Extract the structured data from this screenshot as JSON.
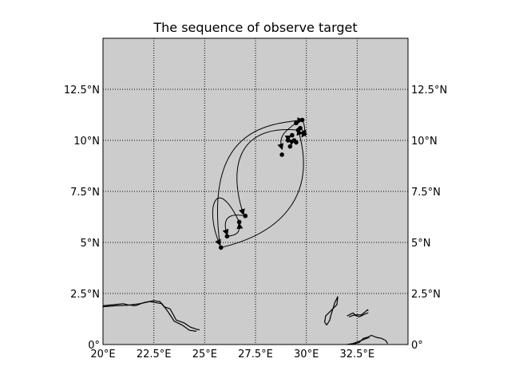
{
  "chart_data": {
    "type": "map",
    "title": "The sequence of observe target",
    "projection": "cylindrical",
    "xlim": [
      20,
      35
    ],
    "ylim": [
      0,
      15
    ],
    "grid": true,
    "grid_style": "dotted",
    "background_color": "#cccccc",
    "coastline_color": "#000000",
    "x_ticks": [
      {
        "value": 20,
        "label": "20°E"
      },
      {
        "value": 22.5,
        "label": "22.5°E"
      },
      {
        "value": 25,
        "label": "25°E"
      },
      {
        "value": 27.5,
        "label": "27.5°E"
      },
      {
        "value": 30,
        "label": "30°E"
      },
      {
        "value": 32.5,
        "label": "32.5°E"
      }
    ],
    "y_ticks": [
      {
        "value": 0,
        "label": "0°"
      },
      {
        "value": 2.5,
        "label": "2.5°N"
      },
      {
        "value": 5,
        "label": "5°N"
      },
      {
        "value": 7.5,
        "label": "7.5°N"
      },
      {
        "value": 10,
        "label": "10°N"
      },
      {
        "value": 12.5,
        "label": "12.5°N"
      }
    ],
    "points": [
      {
        "lon": 25.8,
        "lat": 4.75
      },
      {
        "lon": 26.1,
        "lat": 5.3
      },
      {
        "lon": 26.7,
        "lat": 6.0
      },
      {
        "lon": 27.0,
        "lat": 6.3
      },
      {
        "lon": 28.8,
        "lat": 9.3
      },
      {
        "lon": 29.1,
        "lat": 10.0
      },
      {
        "lon": 29.2,
        "lat": 9.7
      },
      {
        "lon": 29.3,
        "lat": 10.25
      },
      {
        "lon": 29.4,
        "lat": 10.0
      },
      {
        "lon": 29.5,
        "lat": 9.9
      },
      {
        "lon": 29.6,
        "lat": 10.5
      },
      {
        "lon": 29.7,
        "lat": 10.6
      },
      {
        "lon": 29.5,
        "lat": 10.85
      },
      {
        "lon": 29.8,
        "lat": 11.0
      }
    ],
    "routes": [
      {
        "from": [
          25.8,
          4.75
        ],
        "to": [
          29.6,
          10.5
        ],
        "ctrl1": [
          29.0,
          5.5
        ],
        "ctrl2": [
          30.5,
          7.5
        ]
      },
      {
        "from": [
          29.6,
          10.5
        ],
        "to": [
          26.9,
          6.4
        ],
        "ctrl1": [
          26.5,
          10.8
        ],
        "ctrl2": [
          26.2,
          8.5
        ]
      },
      {
        "from": [
          27.0,
          6.3
        ],
        "to": [
          26.1,
          5.4
        ],
        "ctrl1": [
          26.0,
          6.5
        ],
        "ctrl2": [
          25.9,
          6.0
        ]
      },
      {
        "from": [
          26.1,
          5.3
        ],
        "to": [
          26.7,
          5.9
        ],
        "ctrl1": [
          26.6,
          5.35
        ],
        "ctrl2": [
          26.75,
          5.5
        ]
      },
      {
        "from": [
          26.7,
          6.0
        ],
        "to": [
          25.75,
          4.9
        ],
        "ctrl1": [
          25.5,
          8.5
        ],
        "ctrl2": [
          25.0,
          6.5
        ]
      },
      {
        "from": [
          25.75,
          4.9
        ],
        "to": [
          29.8,
          11.0
        ],
        "ctrl1": [
          25.0,
          10.5
        ],
        "ctrl2": [
          28.0,
          10.8
        ]
      },
      {
        "from": [
          29.8,
          11.0
        ],
        "to": [
          29.8,
          10.2
        ],
        "ctrl1": [
          29.9,
          10.8
        ],
        "ctrl2": [
          30.0,
          10.5
        ]
      },
      {
        "from": [
          29.5,
          10.85
        ],
        "to": [
          28.8,
          9.6
        ],
        "ctrl1": [
          29.0,
          10.5
        ],
        "ctrl2": [
          28.6,
          10.2
        ]
      },
      {
        "from": [
          29.3,
          10.25
        ],
        "to": [
          29.1,
          10.0
        ],
        "ctrl1": [
          29.25,
          10.2
        ],
        "ctrl2": [
          29.1,
          10.15
        ]
      },
      {
        "from": [
          29.2,
          9.7
        ],
        "to": [
          29.4,
          10.0
        ],
        "ctrl1": [
          29.25,
          9.8
        ],
        "ctrl2": [
          29.3,
          9.95
        ]
      },
      {
        "from": [
          29.7,
          10.6
        ],
        "to": [
          29.95,
          10.25
        ],
        "ctrl1": [
          29.85,
          10.5
        ],
        "ctrl2": [
          29.9,
          10.35
        ]
      }
    ],
    "coastlines": [
      [
        [
          20,
          1.9
        ],
        [
          20.5,
          1.95
        ],
        [
          21,
          2.0
        ],
        [
          21.2,
          1.95
        ],
        [
          21.6,
          1.9
        ],
        [
          22.0,
          2.05
        ],
        [
          22.5,
          2.15
        ],
        [
          22.8,
          2.1
        ],
        [
          23.0,
          1.85
        ],
        [
          23.3,
          1.75
        ],
        [
          23.6,
          1.2
        ],
        [
          24.0,
          1.05
        ],
        [
          24.3,
          0.85
        ],
        [
          24.6,
          0.75
        ],
        [
          24.75,
          0.72
        ]
      ],
      [
        [
          20,
          1.85
        ],
        [
          20.6,
          1.9
        ],
        [
          21.2,
          1.92
        ],
        [
          21.8,
          2.0
        ],
        [
          22.3,
          2.1
        ],
        [
          22.9,
          2.0
        ],
        [
          23.2,
          1.6
        ],
        [
          23.5,
          1.15
        ],
        [
          23.9,
          0.95
        ],
        [
          24.25,
          0.7
        ],
        [
          24.6,
          0.65
        ]
      ],
      [
        [
          31.0,
          0.95
        ],
        [
          30.9,
          1.1
        ],
        [
          30.95,
          1.4
        ],
        [
          31.3,
          1.75
        ],
        [
          31.5,
          1.95
        ],
        [
          31.55,
          2.35
        ],
        [
          31.4,
          2.05
        ],
        [
          31.2,
          1.4
        ],
        [
          31.15,
          1.2
        ],
        [
          31.0,
          0.95
        ]
      ],
      [
        [
          32.0,
          1.4
        ],
        [
          32.3,
          1.55
        ],
        [
          32.4,
          1.45
        ],
        [
          32.7,
          1.45
        ],
        [
          32.9,
          1.6
        ],
        [
          33.0,
          1.7
        ],
        [
          33.05,
          1.65
        ]
      ],
      [
        [
          32.1,
          1.35
        ],
        [
          32.35,
          1.45
        ],
        [
          32.6,
          1.35
        ],
        [
          32.9,
          1.5
        ],
        [
          33.05,
          1.55
        ]
      ],
      [
        [
          32.2,
          0.0
        ],
        [
          32.6,
          0.1
        ],
        [
          32.8,
          0.3
        ],
        [
          33.0,
          0.35
        ],
        [
          33.2,
          0.45
        ],
        [
          33.45,
          0.35
        ],
        [
          33.7,
          0.3
        ],
        [
          33.9,
          0.2
        ],
        [
          34.0,
          0.05
        ]
      ],
      [
        [
          32.0,
          0.0
        ],
        [
          32.3,
          0.05
        ],
        [
          32.7,
          0.2
        ],
        [
          33.1,
          0.35
        ]
      ]
    ]
  }
}
